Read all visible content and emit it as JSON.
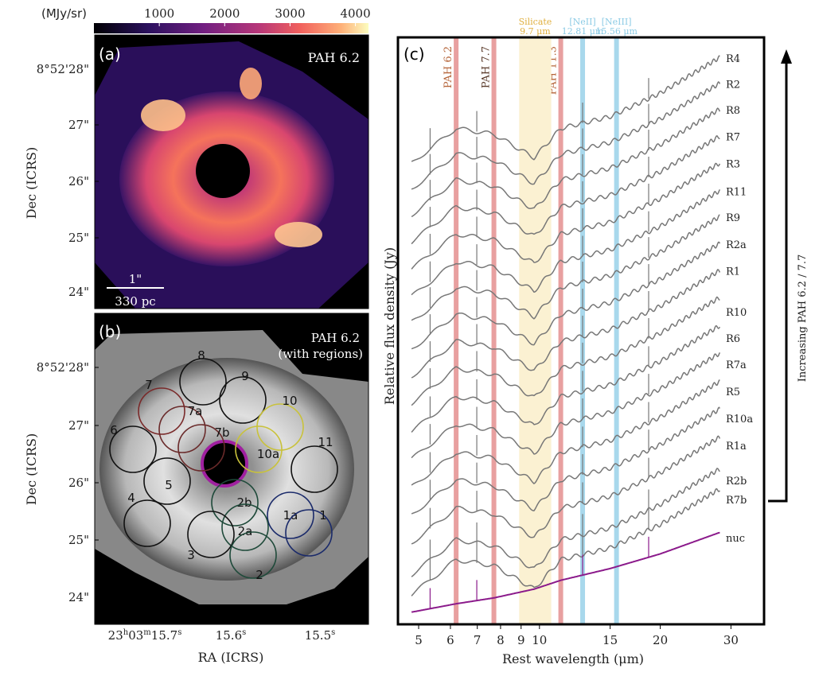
{
  "colorbar": {
    "unit_label": "(MJy/sr)",
    "ticks": [
      "1000",
      "2000",
      "3000",
      "4000"
    ],
    "tick_values": [
      1000,
      2000,
      3000,
      4000
    ],
    "range": [
      0,
      4200
    ],
    "colormap": "magma"
  },
  "panel_a": {
    "tag": "(a)",
    "title": "PAH 6.2",
    "scale_top": "1\"",
    "scale_bottom": "330 pc"
  },
  "panel_b": {
    "tag": "(b)",
    "title_line1": "PAH 6.2",
    "title_line2": "(with regions)",
    "regions": [
      {
        "name": "8",
        "color": "#111111"
      },
      {
        "name": "9",
        "color": "#111111"
      },
      {
        "name": "7",
        "color": "#7a2a2a"
      },
      {
        "name": "7a",
        "color": "#6a2a2a"
      },
      {
        "name": "7b",
        "color": "#6a2a2a"
      },
      {
        "name": "10",
        "color": "#c9c23a"
      },
      {
        "name": "10a",
        "color": "#c9c23a"
      },
      {
        "name": "6",
        "color": "#111111"
      },
      {
        "name": "11",
        "color": "#111111"
      },
      {
        "name": "5",
        "color": "#111111"
      },
      {
        "name": "2b",
        "color": "#1f4a3a"
      },
      {
        "name": "1a",
        "color": "#1a2a6a"
      },
      {
        "name": "4",
        "color": "#111111"
      },
      {
        "name": "1",
        "color": "#1a2a6a"
      },
      {
        "name": "2a",
        "color": "#1f4a3a"
      },
      {
        "name": "3",
        "color": "#111111"
      },
      {
        "name": "2",
        "color": "#1f4a3a"
      }
    ],
    "nucleus_color": "#a020a0"
  },
  "axes_left": {
    "ylabel": "Dec (ICRS)",
    "xlabel": "RA (ICRS)",
    "dec_ticks": [
      "8°52'28\"",
      "27\"",
      "26\"",
      "25\"",
      "24\""
    ],
    "ra_ticks": [
      {
        "h": "23",
        "hu": "h",
        "m": "03",
        "mu": "m",
        "s": "15.7",
        "su": "s"
      },
      {
        "s": "15.6",
        "su": "s"
      },
      {
        "s": "15.5",
        "su": "s"
      }
    ]
  },
  "chart_data": {
    "type": "line",
    "panel_tag": "(c)",
    "xlabel": "Rest wavelength (μm)",
    "ylabel": "Relative flux density (Jy)",
    "xscale": "log",
    "xlim": [
      4.6,
      34
    ],
    "xticks": [
      5,
      6,
      7,
      8,
      9,
      10,
      15,
      20,
      30
    ],
    "xtick_labels": [
      "5",
      "6",
      "7",
      "8",
      "9",
      "10",
      "15",
      "20",
      "30"
    ],
    "x": [
      5,
      6.2,
      7.7,
      9.7,
      11.3,
      15,
      20,
      28
    ],
    "series": [
      {
        "name": "R4",
        "values": [
          79.5,
          84.5,
          83.5,
          79.5,
          84.5,
          86.5,
          90.5,
          96.5
        ]
      },
      {
        "name": "R2",
        "values": [
          75.1,
          80.1,
          79.1,
          75.1,
          80.1,
          82.1,
          86.1,
          92.1
        ]
      },
      {
        "name": "R8",
        "values": [
          70.7,
          75.7,
          74.7,
          70.7,
          75.7,
          77.7,
          81.7,
          87.7
        ]
      },
      {
        "name": "R7",
        "values": [
          66.1,
          71.1,
          70.1,
          66.1,
          71.1,
          73.1,
          77.1,
          83.1
        ]
      },
      {
        "name": "R3",
        "values": [
          61.5,
          66.5,
          65.5,
          61.5,
          66.5,
          68.5,
          72.5,
          78.5
        ]
      },
      {
        "name": "R11",
        "values": [
          56.8,
          61.8,
          60.8,
          56.8,
          61.8,
          63.8,
          67.8,
          73.8
        ]
      },
      {
        "name": "R9",
        "values": [
          52.4,
          57.4,
          56.4,
          52.4,
          57.4,
          59.4,
          63.4,
          69.4
        ]
      },
      {
        "name": "R2a",
        "values": [
          47.8,
          52.8,
          51.8,
          47.8,
          52.8,
          54.8,
          58.8,
          64.8
        ]
      },
      {
        "name": "R1",
        "values": [
          43.2,
          48.2,
          47.2,
          43.2,
          48.2,
          50.2,
          54.2,
          60.2
        ]
      },
      {
        "name": "R10",
        "values": [
          38.6,
          43.6,
          42.6,
          38.6,
          43.6,
          45.6,
          49.6,
          55.6
        ]
      },
      {
        "name": "R6",
        "values": [
          33.8,
          38.8,
          37.8,
          33.8,
          38.8,
          40.8,
          44.8,
          50.8
        ]
      },
      {
        "name": "R7a",
        "values": [
          29.1,
          34.1,
          33.1,
          29.1,
          34.1,
          36.1,
          40.1,
          46.1
        ]
      },
      {
        "name": "R5",
        "values": [
          24.3,
          29.3,
          28.3,
          24.3,
          29.3,
          31.3,
          35.3,
          41.3
        ]
      },
      {
        "name": "R10a",
        "values": [
          19.6,
          24.6,
          23.6,
          19.6,
          24.6,
          26.6,
          30.6,
          36.6
        ]
      },
      {
        "name": "R1a",
        "values": [
          14.8,
          19.8,
          18.8,
          14.8,
          19.8,
          21.8,
          25.8,
          31.8
        ]
      },
      {
        "name": "R2b",
        "values": [
          9.4,
          14.4,
          13.4,
          9.4,
          14.4,
          16.4,
          20.4,
          26.4
        ]
      },
      {
        "name": "R7b",
        "values": [
          6.0,
          11.0,
          10.0,
          6.0,
          11.0,
          13.0,
          17.0,
          23.0
        ]
      },
      {
        "name": "nuc",
        "values": [
          2.3,
          3.5,
          4.5,
          6.0,
          7.5,
          9.5,
          12.0,
          15.6
        ],
        "color": "#8b1a8b"
      }
    ],
    "series_color": "#777777",
    "features": [
      {
        "label": "PAH 6.2",
        "x": 6.2,
        "color": "#e8a0a0",
        "label_color": "#b5653a",
        "type": "line"
      },
      {
        "label": "PAH 7.7",
        "x": 7.7,
        "color": "#e8a0a0",
        "label_color": "#5a3a2a",
        "type": "line"
      },
      {
        "label": "PAH 11.3",
        "x": 11.3,
        "color": "#e8a0a0",
        "label_color": "#b5653a",
        "type": "line"
      },
      {
        "label": "Silicate",
        "sublabel": "9.7 μm",
        "range": [
          8.9,
          10.7
        ],
        "color": "#fbf1d2",
        "label_color": "#e0b040",
        "type": "band"
      },
      {
        "label": "[NeII]",
        "sublabel": "12.81 μm",
        "x": 12.81,
        "color": "#a8d8ec",
        "label_color": "#8ccbe5",
        "type": "line"
      },
      {
        "label": "[NeIII]",
        "sublabel": "15.56 μm",
        "x": 15.56,
        "color": "#a8d8ec",
        "label_color": "#8ccbe5",
        "type": "line"
      }
    ],
    "emission_spikes": [
      5.34,
      6.98,
      12.81,
      18.71
    ],
    "arrow_label": "Increasing PAH 6.2 / 7.7"
  }
}
